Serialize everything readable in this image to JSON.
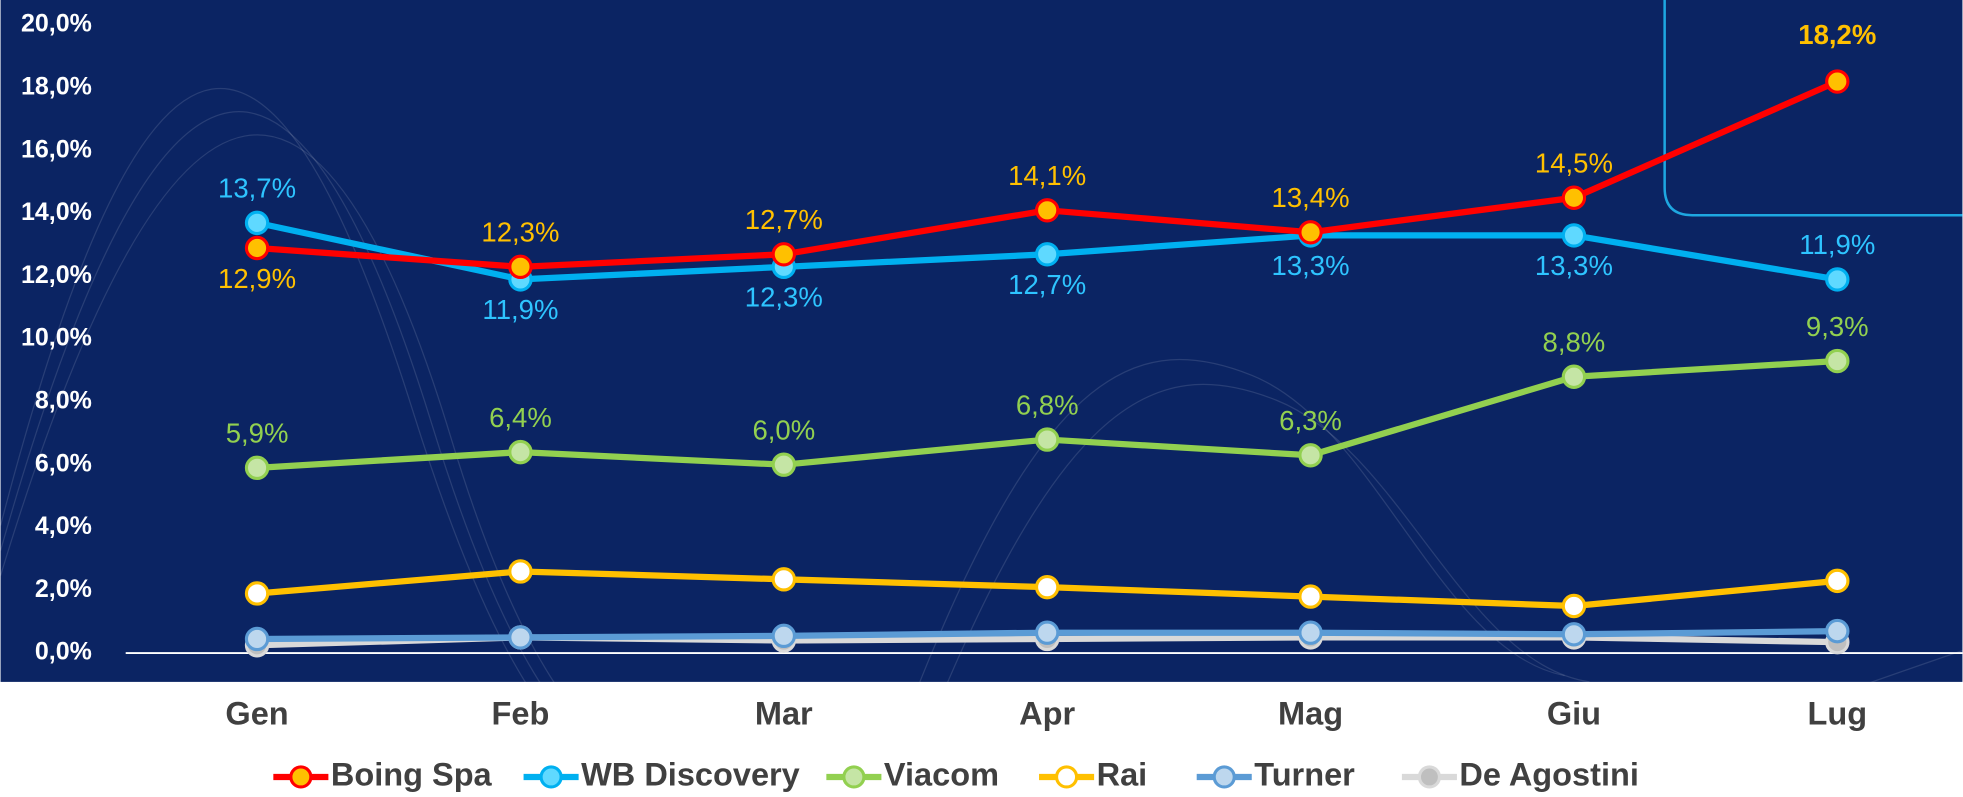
{
  "chart_data": {
    "type": "line",
    "categories": [
      "Gen",
      "Feb",
      "Mar",
      "Apr",
      "Mag",
      "Giu",
      "Lug"
    ],
    "ylim": [
      0,
      20
    ],
    "yticks": [
      {
        "value": 0,
        "label": "0,0%"
      },
      {
        "value": 2,
        "label": "2,0%"
      },
      {
        "value": 4,
        "label": "4,0%"
      },
      {
        "value": 6,
        "label": "6,0%"
      },
      {
        "value": 8,
        "label": "8,0%"
      },
      {
        "value": 10,
        "label": "10,0%"
      },
      {
        "value": 12,
        "label": "12,0%"
      },
      {
        "value": 14,
        "label": "14,0%"
      },
      {
        "value": 16,
        "label": "16,0%"
      },
      {
        "value": 18,
        "label": "18,0%"
      },
      {
        "value": 20,
        "label": "20,0%"
      }
    ],
    "series": [
      {
        "name": "Boing Spa",
        "color": "#ff0000",
        "marker_color": "#ffc000",
        "label_color": "#ffc000",
        "values": [
          12.9,
          12.3,
          12.7,
          14.1,
          13.4,
          14.5,
          18.2
        ],
        "value_labels": [
          "12,9%",
          "12,3%",
          "12,7%",
          "14,1%",
          "13,4%",
          "14,5%",
          "18,2%"
        ]
      },
      {
        "name": "WB Discovery",
        "color": "#00b0f0",
        "marker_color": "#5fd9ff",
        "label_color": "#2ec4ff",
        "values": [
          13.7,
          11.9,
          12.3,
          12.7,
          13.3,
          13.3,
          11.9
        ],
        "value_labels": [
          "13,7%",
          "11,9%",
          "12,3%",
          "12,7%",
          "13,3%",
          "13,3%",
          "11,9%"
        ]
      },
      {
        "name": "Viacom",
        "color": "#92d050",
        "marker_color": "#c5e5a5",
        "label_color": "#92d050",
        "values": [
          5.9,
          6.4,
          6.0,
          6.8,
          6.3,
          8.8,
          9.3
        ],
        "value_labels": [
          "5,9%",
          "6,4%",
          "6,0%",
          "6,8%",
          "6,3%",
          "8,8%",
          "9,3%"
        ]
      },
      {
        "name": "Rai",
        "color": "#ffc000",
        "marker_color": "#ffffff",
        "values": [
          1.9,
          2.6,
          2.35,
          2.1,
          1.8,
          1.5,
          2.3
        ]
      },
      {
        "name": "Turner",
        "color": "#5b9bd5",
        "marker_color": "#bdd7ee",
        "values": [
          0.45,
          0.5,
          0.55,
          0.65,
          0.65,
          0.6,
          0.7
        ]
      },
      {
        "name": "De Agostini",
        "color": "#d9d9d9",
        "marker_color": "#bfbfbf",
        "values": [
          0.25,
          0.5,
          0.4,
          0.45,
          0.5,
          0.5,
          0.35
        ]
      }
    ]
  }
}
